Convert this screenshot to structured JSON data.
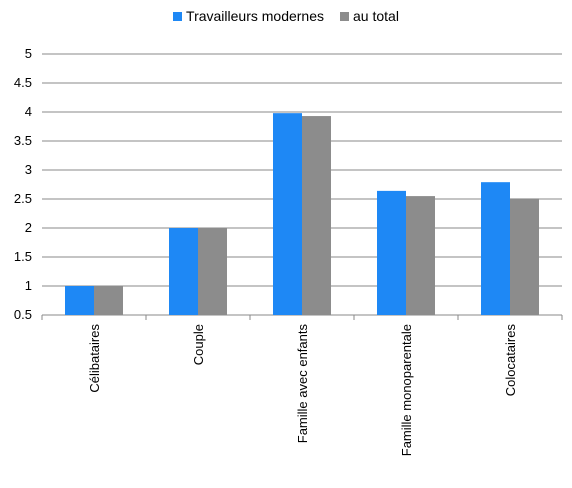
{
  "chart_data": {
    "type": "bar",
    "categories": [
      "Célibataires",
      "Couple",
      "Famille avec enfants",
      "Famille monoparentale",
      "Colocataires"
    ],
    "series": [
      {
        "name": "Travailleurs modernes",
        "color": "#1e88f5",
        "values": [
          1.0,
          2.0,
          3.98,
          2.64,
          2.79
        ]
      },
      {
        "name": "au total",
        "color": "#8c8c8c",
        "values": [
          1.0,
          2.0,
          3.93,
          2.55,
          2.51
        ]
      }
    ],
    "yticks": [
      "0.5",
      "1",
      "1.5",
      "2",
      "2.5",
      "3",
      "3.5",
      "4",
      "4.5",
      "5"
    ],
    "ylim": [
      0.5,
      5
    ],
    "grid": true,
    "legend_position": "top"
  }
}
